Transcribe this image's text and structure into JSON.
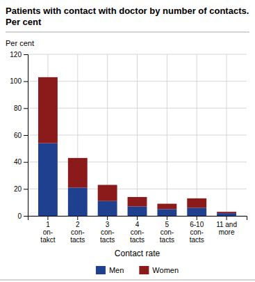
{
  "chart_data": {
    "type": "bar",
    "title": "Patients with contact with doctor by number of contacts.",
    "subtitle": "Per cent",
    "ylabel": "Per cent",
    "xlabel": "Contact rate",
    "categories": [
      "1\non-\ntakct",
      "2\ncon-\ntacts",
      "3\ncon-\ntacts",
      "4\ncon-\ntacts",
      "5\ncon-\ntacts",
      "6-10\ncon-\ntacts",
      "11 and\nmore"
    ],
    "series": [
      {
        "name": "Men",
        "color": "#1f3f8f",
        "values": [
          54,
          21,
          11,
          7,
          5,
          6,
          2
        ]
      },
      {
        "name": "Women",
        "color": "#8b1a1a",
        "values": [
          49,
          22,
          12,
          7,
          4,
          7,
          1
        ]
      }
    ],
    "stacked": true,
    "ylim": [
      0,
      120
    ],
    "yticks": [
      0,
      20,
      40,
      60,
      80,
      100,
      120
    ],
    "grid": true,
    "legend": "bottom"
  }
}
